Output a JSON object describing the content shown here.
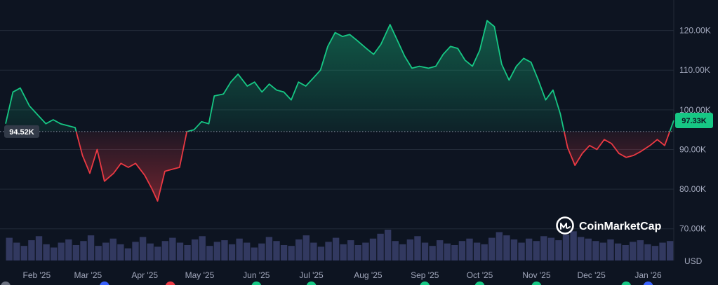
{
  "chart_data": {
    "type": "area",
    "currency_label": "USD",
    "watermark": "CoinMarketCap",
    "baseline": {
      "value": 94520,
      "label": "94.52K"
    },
    "current": {
      "value": 97330,
      "label": "97.33K"
    },
    "ylim": [
      62000,
      127000
    ],
    "y_ticks": [
      {
        "value": 70000,
        "label": "70.00K"
      },
      {
        "value": 80000,
        "label": "80.00K"
      },
      {
        "value": 90000,
        "label": "90.00K"
      },
      {
        "value": 100000,
        "label": "100.00K"
      },
      {
        "value": 110000,
        "label": "110.00K"
      },
      {
        "value": 120000,
        "label": "120.00K"
      }
    ],
    "x_ticks": [
      {
        "date": "2025-02-01",
        "label": "Feb '25"
      },
      {
        "date": "2025-03-01",
        "label": "Mar '25"
      },
      {
        "date": "2025-04-01",
        "label": "Apr '25"
      },
      {
        "date": "2025-05-01",
        "label": "May '25"
      },
      {
        "date": "2025-06-01",
        "label": "Jun '25"
      },
      {
        "date": "2025-07-01",
        "label": "Jul '25"
      },
      {
        "date": "2025-08-01",
        "label": "Aug '25"
      },
      {
        "date": "2025-09-01",
        "label": "Sep '25"
      },
      {
        "date": "2025-10-01",
        "label": "Oct '25"
      },
      {
        "date": "2025-11-01",
        "label": "Nov '25"
      },
      {
        "date": "2025-12-01",
        "label": "Dec '25"
      },
      {
        "date": "2026-01-01",
        "label": "Jan '26"
      }
    ],
    "x_range": [
      "2025-01-15",
      "2026-01-15"
    ],
    "series": [
      {
        "x": [
          "2025-01-15",
          "2025-01-19",
          "2025-01-23",
          "2025-01-28",
          "2025-02-02",
          "2025-02-06",
          "2025-02-10",
          "2025-02-14",
          "2025-02-18",
          "2025-02-22",
          "2025-02-26",
          "2025-03-02",
          "2025-03-06",
          "2025-03-10",
          "2025-03-15",
          "2025-03-19",
          "2025-03-23",
          "2025-03-27",
          "2025-04-01",
          "2025-04-05",
          "2025-04-08",
          "2025-04-12",
          "2025-04-16",
          "2025-04-20",
          "2025-04-24",
          "2025-04-28",
          "2025-05-02",
          "2025-05-06",
          "2025-05-09",
          "2025-05-14",
          "2025-05-18",
          "2025-05-22",
          "2025-05-27",
          "2025-05-31",
          "2025-06-04",
          "2025-06-08",
          "2025-06-12",
          "2025-06-16",
          "2025-06-20",
          "2025-06-24",
          "2025-06-28",
          "2025-07-02",
          "2025-07-06",
          "2025-07-10",
          "2025-07-14",
          "2025-07-18",
          "2025-07-22",
          "2025-07-26",
          "2025-07-31",
          "2025-08-04",
          "2025-08-08",
          "2025-08-13",
          "2025-08-17",
          "2025-08-21",
          "2025-08-25",
          "2025-08-29",
          "2025-09-03",
          "2025-09-07",
          "2025-09-11",
          "2025-09-15",
          "2025-09-19",
          "2025-09-23",
          "2025-09-27",
          "2025-10-01",
          "2025-10-05",
          "2025-10-09",
          "2025-10-13",
          "2025-10-17",
          "2025-10-21",
          "2025-10-25",
          "2025-10-29",
          "2025-11-02",
          "2025-11-06",
          "2025-11-10",
          "2025-11-14",
          "2025-11-18",
          "2025-11-22",
          "2025-11-26",
          "2025-11-30",
          "2025-12-04",
          "2025-12-08",
          "2025-12-12",
          "2025-12-16",
          "2025-12-20",
          "2025-12-24",
          "2025-12-28",
          "2026-01-02",
          "2026-01-06",
          "2026-01-10",
          "2026-01-15"
        ],
        "y": [
          96500,
          104500,
          105500,
          101000,
          98500,
          96500,
          97500,
          96500,
          96000,
          95500,
          88500,
          84000,
          90000,
          82000,
          84000,
          86500,
          85500,
          86500,
          83500,
          80000,
          77000,
          84500,
          85000,
          85500,
          94500,
          95000,
          97000,
          96500,
          103500,
          104000,
          107000,
          109000,
          106000,
          107000,
          104500,
          106500,
          105000,
          104500,
          102500,
          107000,
          106000,
          108000,
          110000,
          116000,
          119500,
          118500,
          119000,
          117500,
          115500,
          114000,
          116500,
          121500,
          117500,
          113500,
          110500,
          111000,
          110500,
          111000,
          114000,
          116000,
          115500,
          112500,
          111000,
          115000,
          122500,
          121000,
          111500,
          107500,
          111000,
          113000,
          112000,
          107500,
          102500,
          105000,
          99000,
          90500,
          86000,
          89000,
          91000,
          90000,
          92500,
          91500,
          89000,
          88000,
          88500,
          89500,
          91000,
          92500,
          91000,
          97330
        ]
      }
    ],
    "volume": [
      28,
      22,
      18,
      25,
      30,
      20,
      16,
      22,
      26,
      19,
      24,
      31,
      18,
      22,
      27,
      20,
      15,
      23,
      29,
      21,
      17,
      24,
      28,
      22,
      19,
      26,
      30,
      18,
      23,
      25,
      20,
      27,
      22,
      16,
      21,
      29,
      24,
      19,
      18,
      26,
      31,
      22,
      17,
      23,
      28,
      20,
      25,
      19,
      22,
      27,
      33,
      38,
      24,
      20,
      26,
      30,
      22,
      18,
      25,
      21,
      19,
      24,
      27,
      22,
      20,
      28,
      35,
      31,
      26,
      22,
      27,
      24,
      30,
      28,
      25,
      32,
      36,
      29,
      27,
      24,
      22,
      26,
      21,
      19,
      23,
      25,
      20,
      18,
      22,
      24
    ]
  }
}
